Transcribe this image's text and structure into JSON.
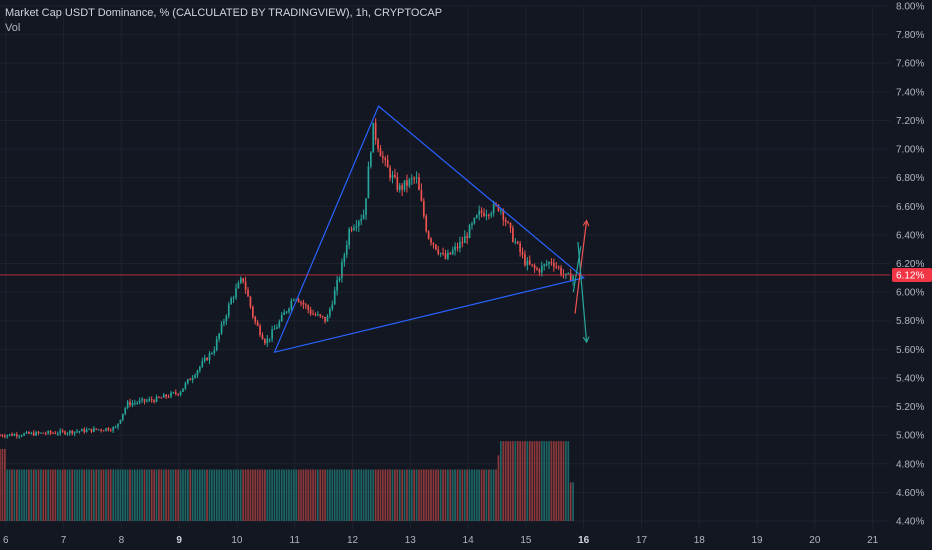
{
  "header": {
    "title": "Market Cap USDT Dominance, % (CALCULATED BY TRADINGVIEW), 1h, CRYPTOCAP",
    "volume_label": "Vol"
  },
  "colors": {
    "background": "#131722",
    "bull": "#26a69a",
    "bear": "#ef5350",
    "drawing_line": "#2962ff",
    "price_line": "#f23645",
    "grid": "#1e222d"
  },
  "price_tag": {
    "label": "6.12%",
    "value": 6.12
  },
  "chart_data": {
    "type": "candlestick",
    "title": "Market Cap USDT Dominance, % (CALCULATED BY TRADINGVIEW), 1h, CRYPTOCAP",
    "x_ticks": [
      {
        "label": "6",
        "value": 6
      },
      {
        "label": "7",
        "value": 7
      },
      {
        "label": "8",
        "value": 8
      },
      {
        "label": "9",
        "value": 9,
        "bold": true
      },
      {
        "label": "10",
        "value": 10
      },
      {
        "label": "11",
        "value": 11
      },
      {
        "label": "12",
        "value": 12
      },
      {
        "label": "13",
        "value": 13
      },
      {
        "label": "14",
        "value": 14
      },
      {
        "label": "15",
        "value": 15
      },
      {
        "label": "16",
        "value": 16,
        "bold": true
      },
      {
        "label": "17",
        "value": 17
      },
      {
        "label": "18",
        "value": 18
      },
      {
        "label": "19",
        "value": 19
      },
      {
        "label": "20",
        "value": 20
      },
      {
        "label": "21",
        "value": 21
      }
    ],
    "y_ticks": [
      "8.00%",
      "7.80%",
      "7.60%",
      "7.40%",
      "7.20%",
      "7.00%",
      "6.80%",
      "6.60%",
      "6.40%",
      "6.20%",
      "6.00%",
      "5.80%",
      "5.60%",
      "5.40%",
      "5.20%",
      "5.00%",
      "4.80%",
      "4.60%",
      "4.40%"
    ],
    "ylim": [
      4.4,
      8.0
    ],
    "xlim": [
      5.9,
      21.3
    ],
    "price_anchors": [
      [
        5.9,
        5.0
      ],
      [
        7.0,
        5.02
      ],
      [
        7.9,
        5.05
      ],
      [
        8.1,
        5.22
      ],
      [
        8.6,
        5.25
      ],
      [
        9.0,
        5.3
      ],
      [
        9.3,
        5.45
      ],
      [
        9.6,
        5.6
      ],
      [
        9.9,
        5.95
      ],
      [
        10.1,
        6.1
      ],
      [
        10.3,
        5.8
      ],
      [
        10.5,
        5.65
      ],
      [
        10.75,
        5.8
      ],
      [
        11.0,
        5.98
      ],
      [
        11.3,
        5.85
      ],
      [
        11.55,
        5.8
      ],
      [
        11.8,
        6.15
      ],
      [
        11.95,
        6.45
      ],
      [
        12.2,
        6.55
      ],
      [
        12.35,
        7.15
      ],
      [
        12.55,
        6.9
      ],
      [
        12.8,
        6.72
      ],
      [
        13.1,
        6.8
      ],
      [
        13.3,
        6.4
      ],
      [
        13.6,
        6.23
      ],
      [
        13.9,
        6.35
      ],
      [
        14.2,
        6.55
      ],
      [
        14.55,
        6.6
      ],
      [
        14.75,
        6.4
      ],
      [
        15.0,
        6.2
      ],
      [
        15.2,
        6.15
      ],
      [
        15.45,
        6.22
      ],
      [
        15.7,
        6.1
      ],
      [
        15.85,
        6.12
      ]
    ],
    "volume_profile": [
      [
        5.9,
        0.28
      ],
      [
        6.0,
        0.28
      ],
      [
        6.01,
        0.2
      ],
      [
        8.85,
        0.2
      ],
      [
        8.85,
        0.2
      ],
      [
        14.5,
        0.2
      ],
      [
        14.55,
        0.31
      ],
      [
        15.75,
        0.31
      ],
      [
        15.76,
        0.15
      ],
      [
        15.85,
        0.15
      ]
    ],
    "drawings": {
      "triangle": [
        [
          10.65,
          5.58
        ],
        [
          12.45,
          7.3
        ],
        [
          16.0,
          6.1
        ]
      ],
      "lower_line": [
        [
          10.65,
          5.58
        ],
        [
          16.0,
          6.1
        ]
      ],
      "up_arrow": [
        [
          15.85,
          5.85
        ],
        [
          16.05,
          6.5
        ]
      ],
      "down_arrow": [
        [
          15.9,
          6.35
        ],
        [
          16.05,
          5.65
        ]
      ],
      "mid_line_up": [
        [
          15.82,
          6.0
        ],
        [
          15.95,
          6.32
        ]
      ]
    },
    "last_price": 6.12
  }
}
